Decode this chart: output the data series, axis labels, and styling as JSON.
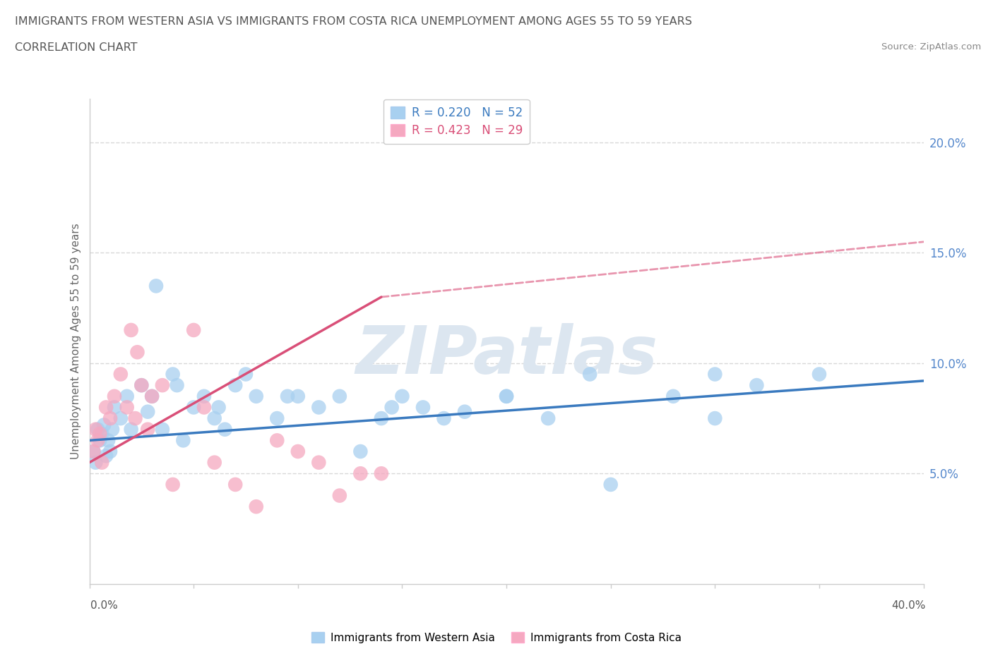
{
  "title_line1": "IMMIGRANTS FROM WESTERN ASIA VS IMMIGRANTS FROM COSTA RICA UNEMPLOYMENT AMONG AGES 55 TO 59 YEARS",
  "title_line2": "CORRELATION CHART",
  "source": "Source: ZipAtlas.com",
  "ylabel": "Unemployment Among Ages 55 to 59 years",
  "ylabel_right_values": [
    5.0,
    10.0,
    15.0,
    20.0
  ],
  "xlim": [
    0.0,
    40.0
  ],
  "ylim": [
    0.0,
    22.0
  ],
  "legend_blue_r": "R = 0.220",
  "legend_blue_n": "N = 52",
  "legend_pink_r": "R = 0.423",
  "legend_pink_n": "N = 29",
  "western_asia_scatter_x": [
    0.2,
    0.3,
    0.4,
    0.5,
    0.6,
    0.7,
    0.8,
    0.9,
    1.0,
    1.1,
    1.2,
    1.5,
    1.8,
    2.0,
    2.5,
    2.8,
    3.0,
    3.5,
    4.0,
    4.5,
    5.0,
    5.5,
    6.0,
    6.5,
    7.0,
    8.0,
    9.0,
    10.0,
    11.0,
    12.0,
    13.0,
    14.0,
    15.0,
    16.0,
    17.0,
    18.0,
    20.0,
    22.0,
    24.0,
    25.0,
    28.0,
    30.0,
    32.0,
    35.0,
    3.2,
    4.2,
    6.2,
    7.5,
    9.5,
    14.5,
    20.0,
    30.0
  ],
  "western_asia_scatter_y": [
    6.0,
    5.5,
    7.0,
    6.5,
    6.8,
    7.2,
    5.8,
    6.5,
    6.0,
    7.0,
    8.0,
    7.5,
    8.5,
    7.0,
    9.0,
    7.8,
    8.5,
    7.0,
    9.5,
    6.5,
    8.0,
    8.5,
    7.5,
    7.0,
    9.0,
    8.5,
    7.5,
    8.5,
    8.0,
    8.5,
    6.0,
    7.5,
    8.5,
    8.0,
    7.5,
    7.8,
    8.5,
    7.5,
    9.5,
    4.5,
    8.5,
    7.5,
    9.0,
    9.5,
    13.5,
    9.0,
    8.0,
    9.5,
    8.5,
    8.0,
    8.5,
    9.5
  ],
  "costa_rica_scatter_x": [
    0.2,
    0.3,
    0.4,
    0.5,
    0.6,
    0.8,
    1.0,
    1.2,
    1.5,
    1.8,
    2.0,
    2.2,
    2.5,
    2.8,
    3.0,
    3.5,
    4.0,
    5.0,
    5.5,
    6.0,
    7.0,
    8.0,
    9.0,
    10.0,
    11.0,
    12.0,
    13.0,
    14.0,
    2.3
  ],
  "costa_rica_scatter_y": [
    6.0,
    7.0,
    6.5,
    6.8,
    5.5,
    8.0,
    7.5,
    8.5,
    9.5,
    8.0,
    11.5,
    7.5,
    9.0,
    7.0,
    8.5,
    9.0,
    4.5,
    11.5,
    8.0,
    5.5,
    4.5,
    3.5,
    6.5,
    6.0,
    5.5,
    4.0,
    5.0,
    5.0,
    10.5
  ],
  "blue_scatter_color": "#a8d0f0",
  "pink_scatter_color": "#f5a8c0",
  "blue_line_color": "#3a7abf",
  "pink_line_color": "#d94f78",
  "watermark": "ZIPatlas",
  "watermark_color": "#dce6f0",
  "grid_color": "#d8d8d8",
  "blue_line_start_x": 0.0,
  "blue_line_start_y": 6.5,
  "blue_line_end_x": 40.0,
  "blue_line_end_y": 9.2,
  "pink_solid_start_x": 0.0,
  "pink_solid_start_y": 5.5,
  "pink_solid_end_x": 14.0,
  "pink_solid_end_y": 13.0,
  "pink_dash_start_x": 14.0,
  "pink_dash_start_y": 13.0,
  "pink_dash_end_x": 40.0,
  "pink_dash_end_y": 15.5
}
